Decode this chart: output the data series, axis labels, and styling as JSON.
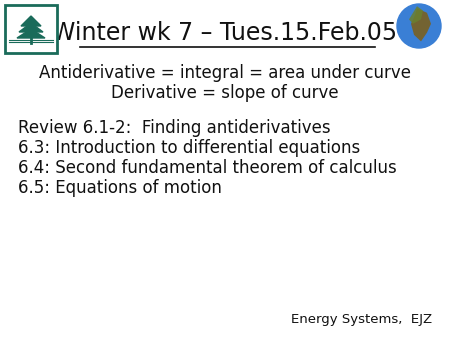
{
  "title": "Winter wk 7 – Tues.15.Feb.05",
  "bg_color": "#ffffff",
  "text_color": "#111111",
  "title_fontsize": 17,
  "body_fontsize": 12,
  "small_fontsize": 9.5,
  "centered_lines": [
    "Antiderivative = integral = area under curve",
    "Derivative = slope of curve"
  ],
  "left_lines": [
    "Review 6.1-2:  Finding antiderivatives",
    "6.3: Introduction to differential equations",
    "6.4: Second fundamental theorem of calculus",
    "6.5: Equations of motion"
  ],
  "footer": "Energy Systems,  EJZ",
  "tree_color": "#1a6b5a",
  "globe_blue": "#3a7fd5",
  "globe_land": "#8B6914",
  "globe_land2": "#5a8a3a"
}
